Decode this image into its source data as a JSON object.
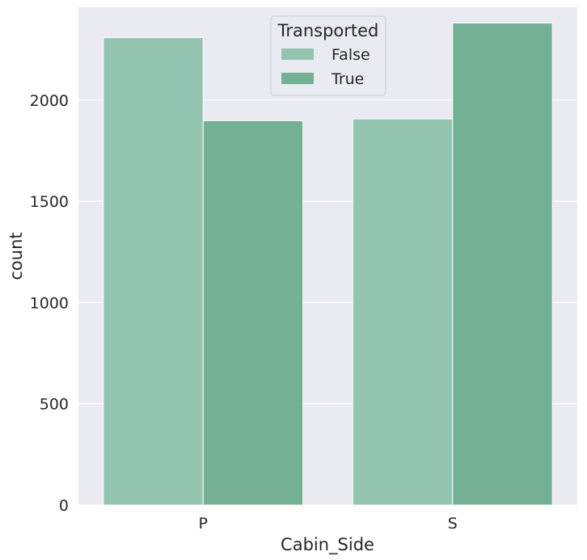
{
  "chart_data": {
    "type": "bar",
    "categories": [
      "P",
      "S"
    ],
    "series": [
      {
        "name": "False",
        "values": [
          2308,
          1907
        ],
        "color": "#93c4b0"
      },
      {
        "name": "True",
        "values": [
          1898,
          2380
        ],
        "color": "#74b194"
      }
    ],
    "xlabel": "Cabin_Side",
    "ylabel": "count",
    "ylim": [
      0,
      2458
    ],
    "yticks": [
      0,
      500,
      1000,
      1500,
      2000
    ],
    "grid": true,
    "background": "#eaeaf2",
    "legend": {
      "title": "Transported",
      "placement": "top-center"
    }
  }
}
